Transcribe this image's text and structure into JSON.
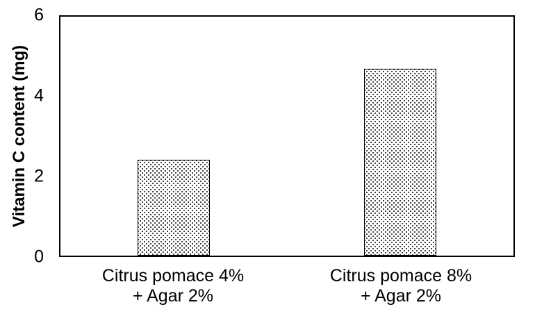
{
  "chart_data": {
    "type": "bar",
    "title": "",
    "xlabel": "",
    "ylabel": "Vitamin C content (mg)",
    "ylim": [
      0,
      6
    ],
    "yticks": [
      0,
      2,
      4,
      6
    ],
    "categories": [
      "Citrus pomace 4% + Agar 2%",
      "Citrus pomace 8% + Agar 2%"
    ],
    "category_lines": [
      [
        "Citrus pomace 4%",
        "+ Agar 2%"
      ],
      [
        "Citrus pomace 8%",
        "+ Agar 2%"
      ]
    ],
    "values": [
      2.4,
      4.7
    ],
    "grid": false,
    "legend": false,
    "plot_border": true,
    "colors": {
      "bar_fill": "#ffffff",
      "bar_pattern": "black-dot-stipple",
      "bar_border": "#000000",
      "axis": "#000000",
      "text": "#000000",
      "background": "#ffffff"
    }
  }
}
